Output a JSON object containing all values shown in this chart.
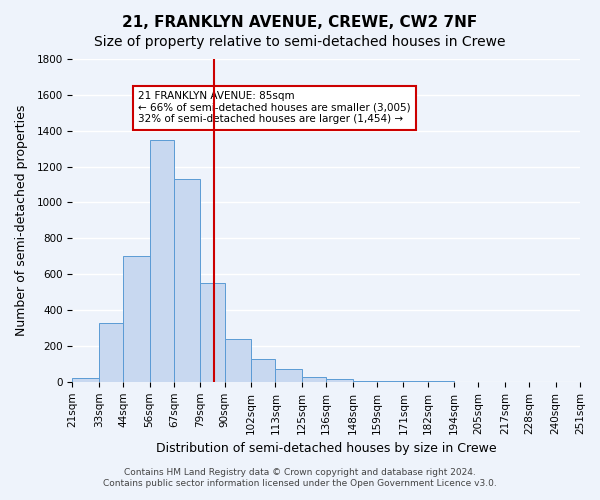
{
  "title": "21, FRANKLYN AVENUE, CREWE, CW2 7NF",
  "subtitle": "Size of property relative to semi-detached houses in Crewe",
  "xlabel": "Distribution of semi-detached houses by size in Crewe",
  "ylabel": "Number of semi-detached properties",
  "bar_color": "#c8d8f0",
  "bar_edge_color": "#5b9bd5",
  "background_color": "#eef3fb",
  "grid_color": "#ffffff",
  "bin_edges": [
    21,
    33,
    44,
    56,
    67,
    79,
    90,
    102,
    113,
    125,
    136,
    148,
    159,
    171,
    182,
    194,
    205,
    217,
    228,
    240,
    251
  ],
  "bin_labels": [
    "21sqm",
    "33sqm",
    "44sqm",
    "56sqm",
    "67sqm",
    "79sqm",
    "90sqm",
    "102sqm",
    "113sqm",
    "125sqm",
    "136sqm",
    "148sqm",
    "159sqm",
    "171sqm",
    "182sqm",
    "194sqm",
    "205sqm",
    "217sqm",
    "228sqm",
    "240sqm",
    "251sqm"
  ],
  "bar_heights": [
    20,
    330,
    700,
    1350,
    1130,
    550,
    240,
    125,
    70,
    25,
    15,
    5,
    5,
    3,
    2,
    1,
    1,
    0,
    0,
    0
  ],
  "ylim": [
    0,
    1800
  ],
  "yticks": [
    0,
    200,
    400,
    600,
    800,
    1000,
    1200,
    1400,
    1600,
    1800
  ],
  "vline_x": 85,
  "vline_color": "#cc0000",
  "annotation_title": "21 FRANKLYN AVENUE: 85sqm",
  "annotation_line1": "← 66% of semi-detached houses are smaller (3,005)",
  "annotation_line2": "32% of semi-detached houses are larger (1,454) →",
  "annotation_box_color": "#ffffff",
  "annotation_box_edge": "#cc0000",
  "footer_line1": "Contains HM Land Registry data © Crown copyright and database right 2024.",
  "footer_line2": "Contains public sector information licensed under the Open Government Licence v3.0.",
  "title_fontsize": 11,
  "subtitle_fontsize": 10,
  "xlabel_fontsize": 9,
  "ylabel_fontsize": 9,
  "tick_fontsize": 7.5,
  "footer_fontsize": 6.5
}
